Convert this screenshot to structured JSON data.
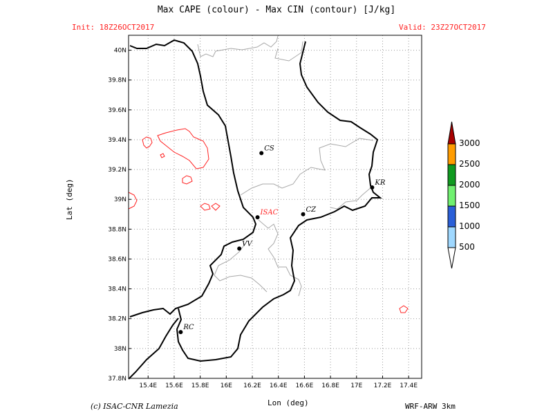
{
  "header": {
    "title": "Max CAPE (colour) - Max CIN (contour) [J/kg]",
    "init": "Init: 18Z26OCT2017",
    "valid": "Valid: 23Z27OCT2017"
  },
  "axes": {
    "ylabel": "Lat (deg)",
    "xlabel": "Lon (deg)",
    "lat_ticks": [
      "40N",
      "39.8N",
      "39.6N",
      "39.4N",
      "39.2N",
      "39N",
      "38.8N",
      "38.6N",
      "38.4N",
      "38.2N",
      "38N",
      "37.8N"
    ],
    "lon_ticks": [
      "15.4E",
      "15.6E",
      "15.8E",
      "16E",
      "16.2E",
      "16.4E",
      "16.6E",
      "16.8E",
      "17E",
      "17.2E",
      "17.4E"
    ]
  },
  "cities": [
    {
      "name": "CS",
      "lon": 16.27,
      "lat": 39.31
    },
    {
      "name": "ISAC",
      "lon": 16.24,
      "lat": 38.88
    },
    {
      "name": "CZ",
      "lon": 16.59,
      "lat": 38.9
    },
    {
      "name": "KR",
      "lon": 17.12,
      "lat": 39.08
    },
    {
      "name": "VV",
      "lon": 16.1,
      "lat": 38.67
    },
    {
      "name": "RC",
      "lon": 15.65,
      "lat": 38.11
    }
  ],
  "colorbar": {
    "labels": [
      "3000",
      "2500",
      "2000",
      "1500",
      "1000",
      "500"
    ],
    "colors": [
      "#ff9c00",
      "#0f9a1f",
      "#70f070",
      "#2a5fd8",
      "#9fd8ff"
    ],
    "over_color": "#a80000",
    "under_color": "#ffffff"
  },
  "footer": {
    "credit": "(c) ISAC-CNR Lamezia",
    "model": "WRF-ARW 3km"
  },
  "colors": {
    "coast": "#000000",
    "border": "#a8a8a8",
    "cin_contour": "#ff2020",
    "grid": "#999999"
  }
}
